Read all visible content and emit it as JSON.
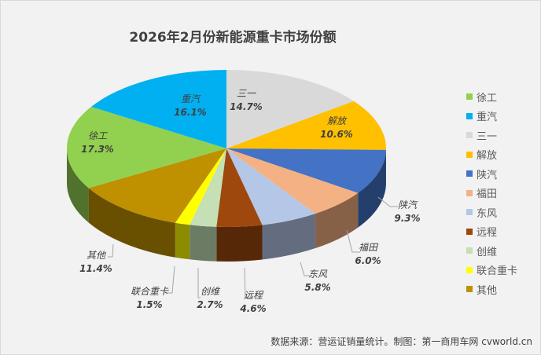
{
  "chart_data": {
    "type": "pie",
    "title": "2026年2月份新能源重卡市场份额",
    "categories": [
      "三一",
      "解放",
      "陕汽",
      "福田",
      "东风",
      "远程",
      "创维",
      "联合重卡",
      "其他",
      "徐工",
      "重汽"
    ],
    "values": [
      14.7,
      10.6,
      9.3,
      6.0,
      5.8,
      4.6,
      2.7,
      1.5,
      11.4,
      17.3,
      16.1
    ],
    "value_labels": [
      "14.7%",
      "10.6%",
      "9.3%",
      "6.0%",
      "5.8%",
      "4.6%",
      "2.7%",
      "1.5%",
      "11.4%",
      "17.3%",
      "16.1%"
    ],
    "colors": [
      "#d9d9d9",
      "#ffc000",
      "#4472c4",
      "#f4b183",
      "#b4c7e7",
      "#9e480e",
      "#c5e0b4",
      "#ffff00",
      "#bf9000",
      "#92d050",
      "#00b0f0"
    ],
    "legend_position": "right",
    "legend": [
      {
        "label": "徐工",
        "color": "#92d050"
      },
      {
        "label": "重汽",
        "color": "#00b0f0"
      },
      {
        "label": "三一",
        "color": "#d9d9d9"
      },
      {
        "label": "解放",
        "color": "#ffc000"
      },
      {
        "label": "陕汽",
        "color": "#4472c4"
      },
      {
        "label": "福田",
        "color": "#f4b183"
      },
      {
        "label": "东风",
        "color": "#b4c7e7"
      },
      {
        "label": "远程",
        "color": "#9e480e"
      },
      {
        "label": "创维",
        "color": "#c5e0b4"
      },
      {
        "label": "联合重卡",
        "color": "#ffff00"
      },
      {
        "label": "其他",
        "color": "#bf9000"
      }
    ]
  },
  "source": "数据来源：营运证销量统计。制图：第一商用车网 cvworld.cn"
}
